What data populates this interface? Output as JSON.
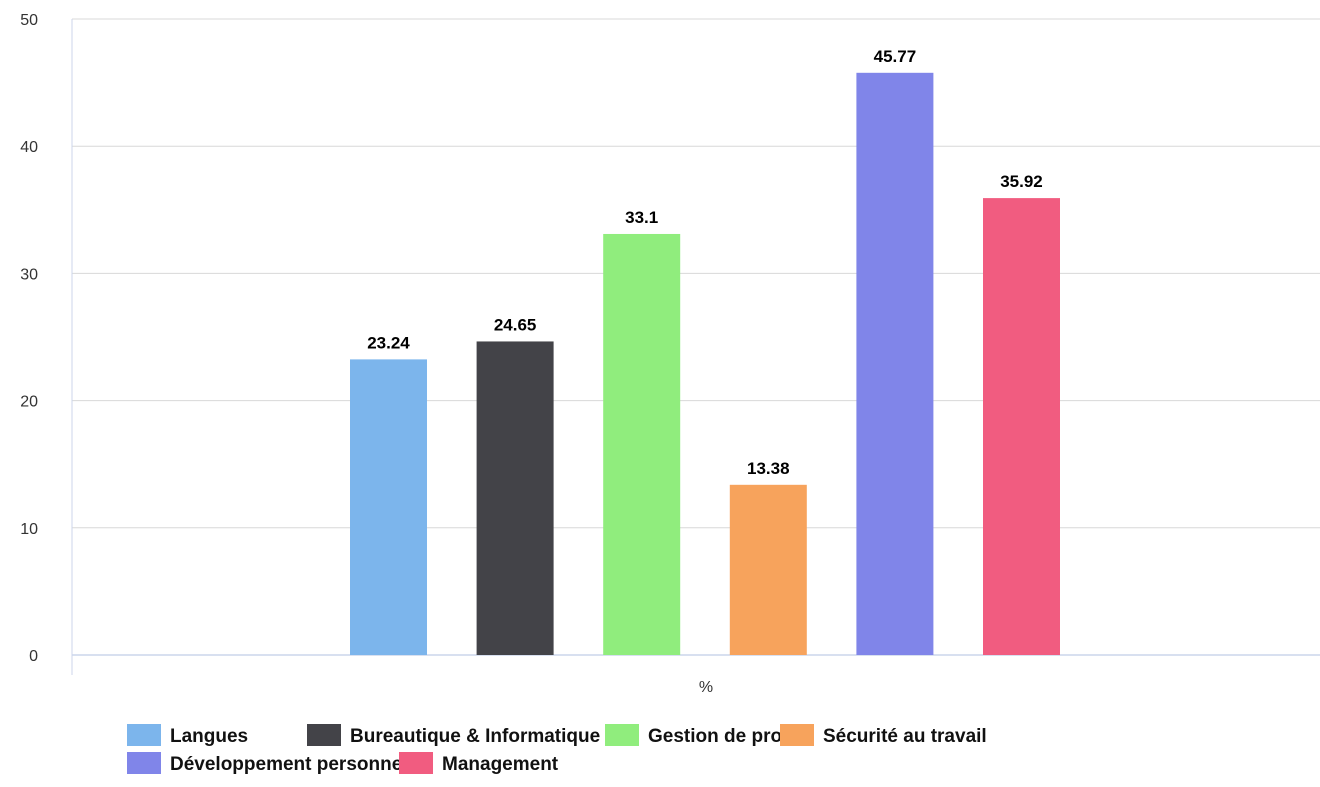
{
  "chart_data": {
    "type": "bar",
    "categories": [
      "%"
    ],
    "series": [
      {
        "name": "Langues",
        "values": [
          23.24
        ],
        "color": "#7cb5ec"
      },
      {
        "name": "Bureautique & Informatique",
        "values": [
          24.65
        ],
        "color": "#434348"
      },
      {
        "name": "Gestion de projet",
        "values": [
          33.1
        ],
        "color": "#90ed7d"
      },
      {
        "name": "Sécurité au travail",
        "values": [
          13.38
        ],
        "color": "#f7a35c"
      },
      {
        "name": "Développement personnel",
        "values": [
          45.77
        ],
        "color": "#8085e9"
      },
      {
        "name": "Management",
        "values": [
          35.92
        ],
        "color": "#f15c80"
      }
    ],
    "data_labels": [
      "23.24",
      "24.65",
      "33.1",
      "13.38",
      "45.77",
      "35.92"
    ],
    "yticks": [
      "0",
      "10",
      "20",
      "30",
      "40",
      "50"
    ],
    "ylim": [
      0,
      50
    ],
    "title": "",
    "xlabel": "",
    "ylabel": "",
    "grid": true,
    "legend_position": "bottom"
  }
}
